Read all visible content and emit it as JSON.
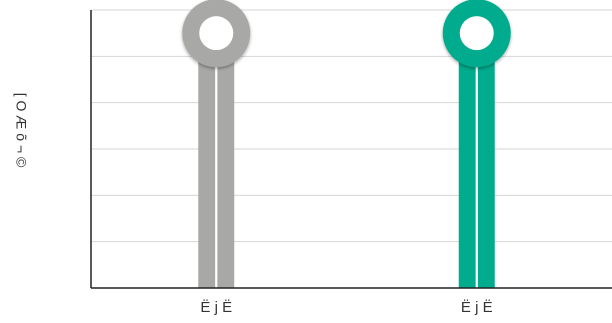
{
  "chart_data": {
    "type": "bar",
    "style": "lollipop",
    "title": "",
    "xlabel": "",
    "ylabel": "[ O Æ õ ¬ ©",
    "categories": [
      "Ë j  Ë",
      "Ë j  Ë"
    ],
    "values": [
      5.5,
      5.5
    ],
    "ylim": [
      0,
      6
    ],
    "grid": true,
    "colors": [
      "#a8a8a6",
      "#00ab8e"
    ]
  }
}
